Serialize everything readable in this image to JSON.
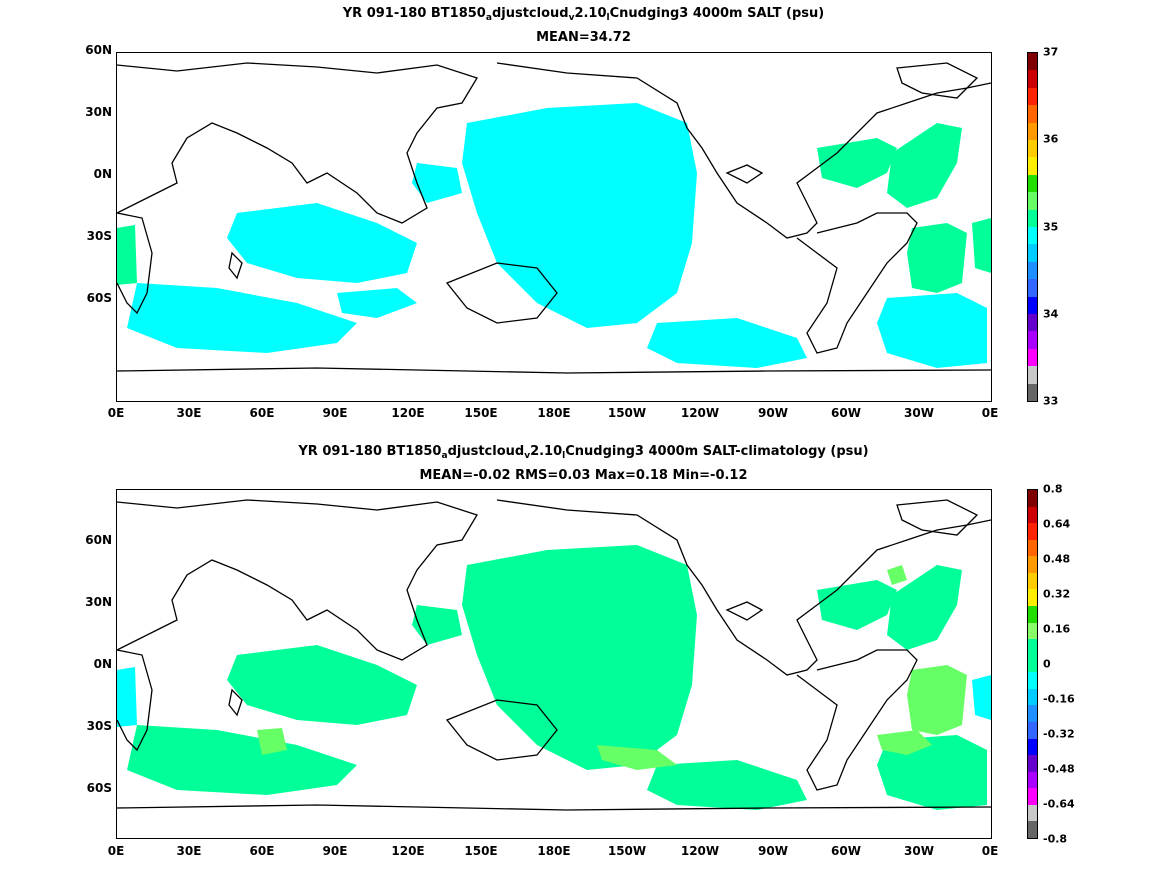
{
  "panels": [
    {
      "title_parts": [
        "YR 091-180 BT1850",
        "a",
        "djustcloud",
        "v",
        "2.10",
        "l",
        "Cnudging3 4000m SALT (psu)"
      ],
      "subtitle": "MEAN=34.72",
      "colorbar_labels": [
        "37",
        "36",
        "35",
        "34",
        "33"
      ],
      "colorbar_colors": [
        "#7f0000",
        "#cc0000",
        "#ff2200",
        "#ff6600",
        "#ff9900",
        "#ffcc00",
        "#ffee00",
        "#22dd00",
        "#66ff66",
        "#00ff99",
        "#00ffff",
        "#00ccff",
        "#1e90ff",
        "#3366ff",
        "#0000ff",
        "#6600cc",
        "#aa00ff",
        "#ff00ff",
        "#c8c8c8",
        "#666666"
      ]
    },
    {
      "title_parts": [
        "YR 091-180 BT1850",
        "a",
        "djustcloud",
        "v",
        "2.10",
        "l",
        "Cnudging3 4000m SALT-climatology (psu)"
      ],
      "subtitle": "MEAN=-0.02   RMS=0.03   Max=0.18   Min=-0.12",
      "colorbar_labels": [
        "0.8",
        "0.64",
        "0.48",
        "0.32",
        "0.16",
        "0",
        "-0.16",
        "-0.32",
        "-0.48",
        "-0.64",
        "-0.8"
      ],
      "colorbar_colors": [
        "#7f0000",
        "#cc0000",
        "#ff2200",
        "#ff6600",
        "#ff9900",
        "#ffcc00",
        "#ffee00",
        "#22dd00",
        "#88ff66",
        "#00ff99",
        "#00ff99",
        "#00ffff",
        "#00ccff",
        "#1e90ff",
        "#3366ff",
        "#0000ff",
        "#6600cc",
        "#aa00ff",
        "#ff00ff",
        "#c8c8c8",
        "#666666"
      ]
    }
  ],
  "y_axis_labels": [
    "60N",
    "30N",
    "0N",
    "30S",
    "60S"
  ],
  "x_axis_labels": [
    "0E",
    "30E",
    "60E",
    "90E",
    "120E",
    "150E",
    "180E",
    "150W",
    "120W",
    "90W",
    "60W",
    "30W",
    "0E"
  ],
  "colors": {
    "cyan_region": "#00ffff",
    "green_region": "#00ff99",
    "lightgreen_region": "#66ff66",
    "coast": "#000000"
  }
}
